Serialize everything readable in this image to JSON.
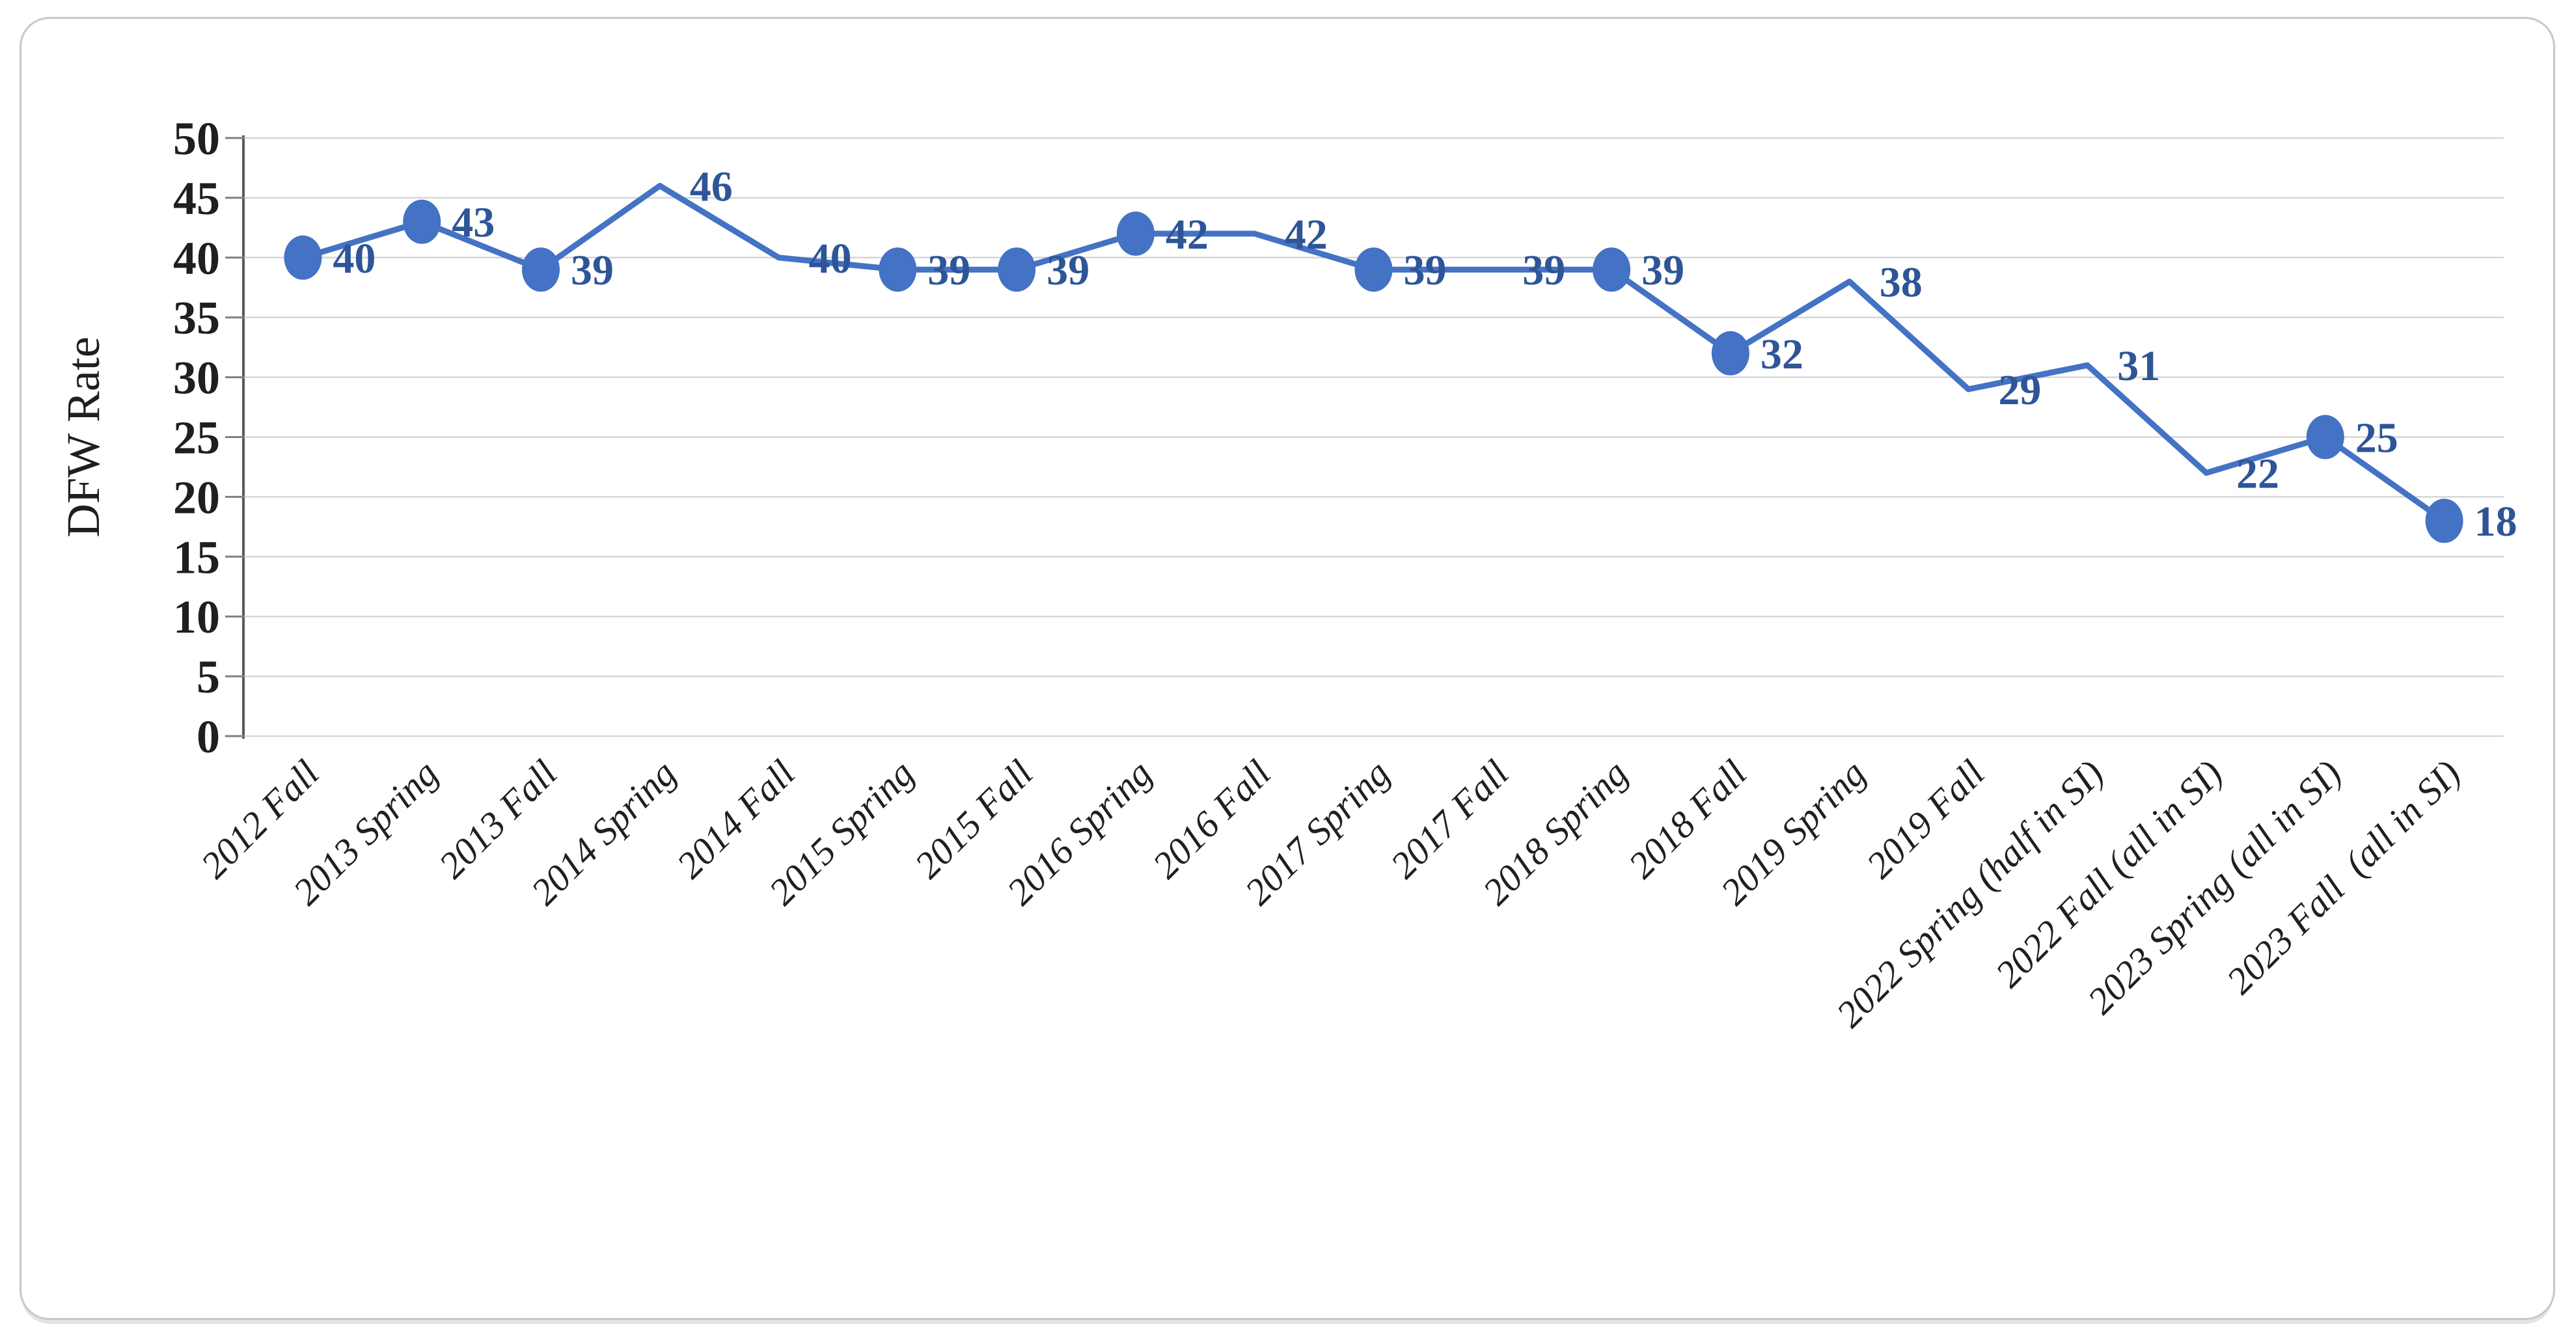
{
  "chart_data": {
    "type": "line",
    "title": "",
    "xlabel": "",
    "ylabel": "DFW Rate",
    "ylim": [
      0,
      50
    ],
    "yticks": [
      0,
      5,
      10,
      15,
      20,
      25,
      30,
      35,
      40,
      45,
      50
    ],
    "grid": true,
    "legend_position": "none",
    "categories": [
      "2012 Fall",
      "2013 Spring",
      "2013 Fall",
      "2014 Spring",
      "2014 Fall",
      "2015 Spring",
      "2015 Fall",
      "2016 Spring",
      "2016 Fall",
      "2017 Spring",
      "2017 Fall",
      "2018 Spring",
      "2018 Fall",
      "2019 Spring",
      "2019 Fall",
      "2022 Spring (half in SI)",
      "2022 Fall (all in SI)",
      "2023 Spring (all in SI)",
      "2023 Fall  (all in SI)"
    ],
    "series": [
      {
        "name": "DFW Rate",
        "values": [
          40,
          43,
          39,
          46,
          40,
          39,
          39,
          42,
          42,
          39,
          39,
          39,
          32,
          38,
          29,
          31,
          22,
          25,
          18
        ],
        "point_has_marker": [
          true,
          true,
          true,
          false,
          false,
          true,
          true,
          true,
          false,
          true,
          false,
          true,
          true,
          false,
          false,
          false,
          false,
          true,
          true
        ],
        "data_labels_visible": true,
        "data_label_position": "right"
      }
    ]
  },
  "colors": {
    "line": "#4472C4",
    "marker": "#4472C4",
    "data_label": "#2E5597",
    "gridline": "#D6D6D6",
    "axis_line": "#595959",
    "tick_mark": "#808080",
    "tick_label": "#1F1F1F",
    "frame_border": "#C8C8C8"
  }
}
